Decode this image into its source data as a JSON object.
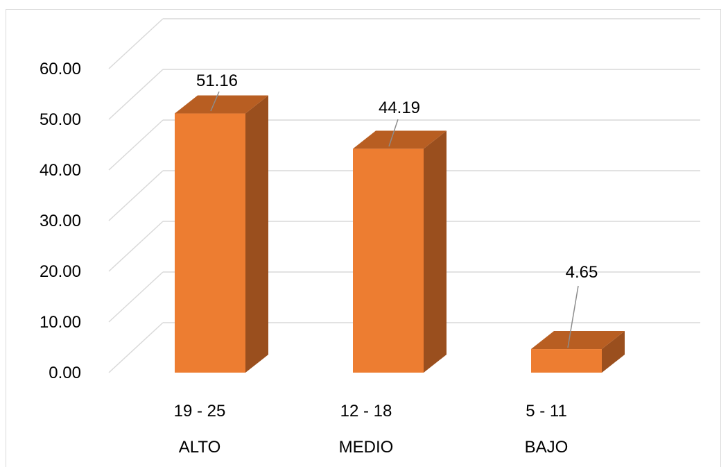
{
  "chart_data": {
    "type": "bar",
    "three_d": true,
    "categories": [
      {
        "range": "19 - 25",
        "level": "ALTO"
      },
      {
        "range": "12 - 18",
        "level": "MEDIO"
      },
      {
        "range": "5 - 11",
        "level": "BAJO"
      }
    ],
    "values": [
      51.16,
      44.19,
      4.65
    ],
    "data_labels": [
      "51.16",
      "44.19",
      "4.65"
    ],
    "y_ticks": [
      "0.00",
      "10.00",
      "20.00",
      "30.00",
      "40.00",
      "50.00",
      "60.00"
    ],
    "ylim": [
      0,
      60
    ],
    "grid": true,
    "legend": "none",
    "colors": {
      "bar_front": "#ED7D31",
      "bar_side": "#9A4F1E",
      "bar_top": "#B85E22",
      "grid": "#d9d9d9",
      "leader": "#8c8c8c"
    }
  }
}
